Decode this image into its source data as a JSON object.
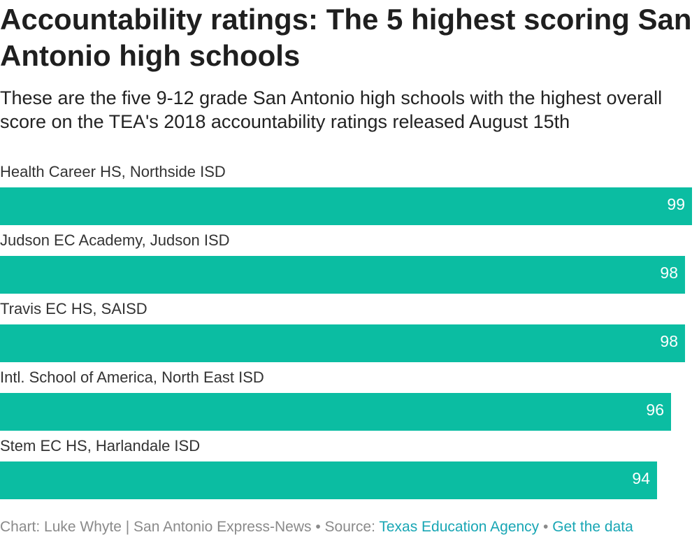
{
  "header": {
    "title": "Accountability ratings: The 5 highest scoring San Antonio high schools",
    "subtitle": "These are the five 9-12 grade San Antonio high schools with the highest overall score on the TEA's 2018 accountability ratings released August 15th"
  },
  "footer": {
    "credit": "Chart: Luke Whyte | San Antonio Express-News",
    "sep1": " • ",
    "source_label": "Source: ",
    "source_link": "Texas Education Agency",
    "sep2": " • ",
    "data_link": "Get the data"
  },
  "colors": {
    "bar": "#0bbda2",
    "value_label": "#ffffff",
    "category_label": "#333333",
    "link": "#18a6b4"
  },
  "chart_data": {
    "type": "bar",
    "orientation": "horizontal",
    "categories": [
      "Health Career HS, Northside ISD",
      "Judson EC Academy, Judson ISD",
      "Travis EC HS, SAISD",
      "Intl. School of America, North East ISD",
      "Stem EC HS, Harlandale ISD"
    ],
    "values": [
      99,
      98,
      98,
      96,
      94
    ],
    "xlim": [
      0,
      99
    ],
    "grid": false,
    "legend": "none",
    "data_labels": true
  }
}
